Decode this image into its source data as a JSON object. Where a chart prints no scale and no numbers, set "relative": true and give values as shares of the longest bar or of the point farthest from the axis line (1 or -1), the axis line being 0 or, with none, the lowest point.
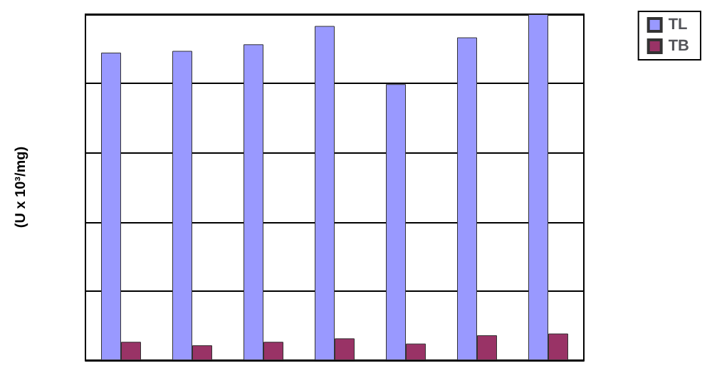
{
  "chart_data": {
    "type": "bar",
    "ylabel": "(U x 10³/mg)",
    "relative": true,
    "categories": [
      null,
      null,
      null,
      null,
      null,
      null,
      null
    ],
    "series": [
      {
        "name": "TL",
        "color": "#9999ff",
        "values": [
          0.889,
          0.894,
          0.913,
          0.966,
          0.798,
          0.933,
          1
        ]
      },
      {
        "name": "TB",
        "color": "#993366",
        "values": [
          0.053,
          0.043,
          0.053,
          0.063,
          0.048,
          0.072,
          0.077
        ]
      }
    ],
    "grid": "y",
    "legend": "top right"
  }
}
